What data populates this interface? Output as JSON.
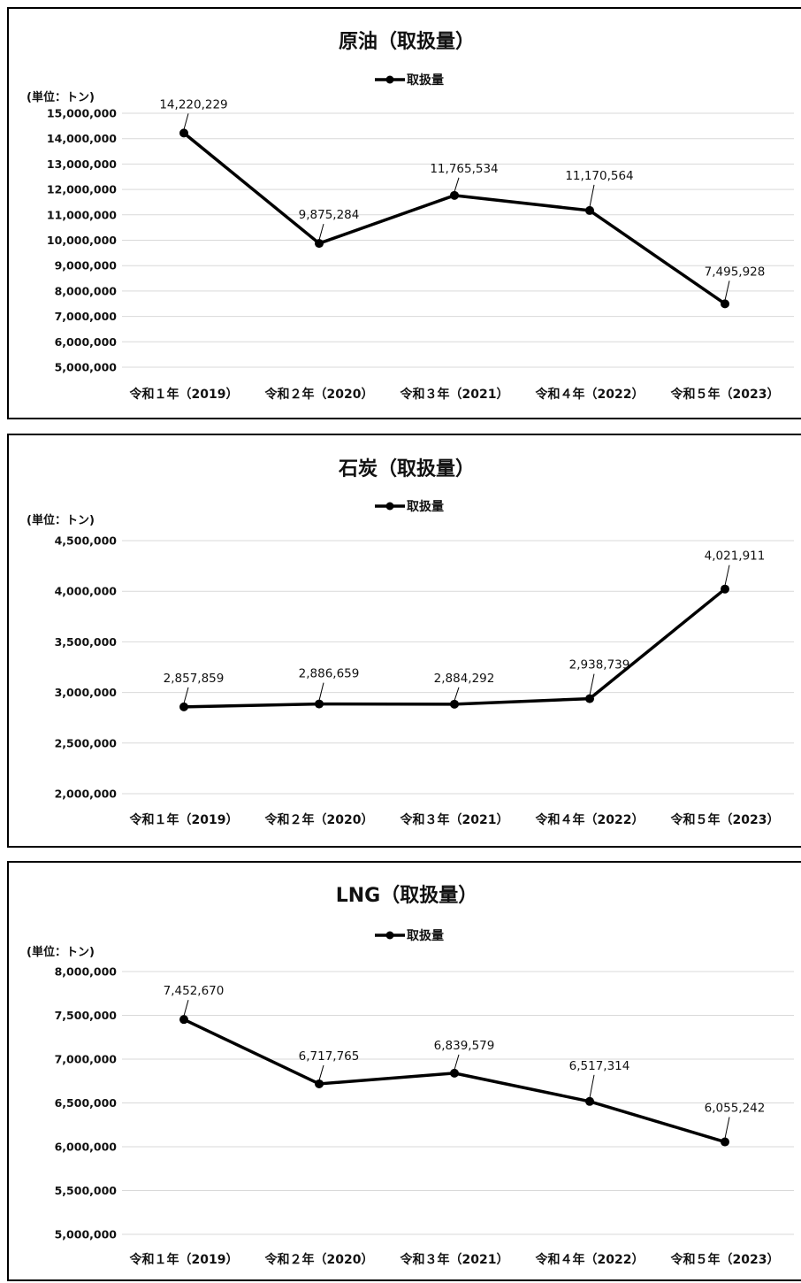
{
  "chart_data": [
    {
      "type": "line",
      "title": "原油（取扱量）",
      "unit_label": "(単位：トン)",
      "legend_label": "取扱量",
      "legend_position": "top-center",
      "grid": true,
      "categories": [
        "令和１年（2019）",
        "令和２年（2020）",
        "令和３年（2021）",
        "令和４年（2022）",
        "令和５年（2023）"
      ],
      "series": [
        {
          "name": "取扱量",
          "values": [
            14220229,
            9875284,
            11765534,
            11170564,
            7495928
          ]
        }
      ],
      "value_labels": [
        "14,220,229",
        "9,875,284",
        "11,765,534",
        "11,170,564",
        "7,495,928"
      ],
      "ylim": [
        5000000,
        15000000
      ],
      "yticks": [
        5000000,
        6000000,
        7000000,
        8000000,
        9000000,
        10000000,
        11000000,
        12000000,
        13000000,
        14000000,
        15000000
      ],
      "ytick_labels": [
        "5,000,000",
        "6,000,000",
        "7,000,000",
        "8,000,000",
        "9,000,000",
        "10,000,000",
        "11,000,000",
        "12,000,000",
        "13,000,000",
        "14,000,000",
        "15,000,000"
      ]
    },
    {
      "type": "line",
      "title": "石炭（取扱量）",
      "unit_label": "(単位：トン)",
      "legend_label": "取扱量",
      "legend_position": "top-center",
      "grid": true,
      "categories": [
        "令和１年（2019）",
        "令和２年（2020）",
        "令和３年（2021）",
        "令和４年（2022）",
        "令和５年（2023）"
      ],
      "series": [
        {
          "name": "取扱量",
          "values": [
            2857859,
            2886659,
            2884292,
            2938739,
            4021911
          ]
        }
      ],
      "value_labels": [
        "2,857,859",
        "2,886,659",
        "2,884,292",
        "2,938,739",
        "4,021,911"
      ],
      "ylim": [
        2000000,
        4500000
      ],
      "yticks": [
        2000000,
        2500000,
        3000000,
        3500000,
        4000000,
        4500000
      ],
      "ytick_labels": [
        "2,000,000",
        "2,500,000",
        "3,000,000",
        "3,500,000",
        "4,000,000",
        "4,500,000"
      ]
    },
    {
      "type": "line",
      "title": "LNG（取扱量）",
      "unit_label": "(単位：トン)",
      "legend_label": "取扱量",
      "legend_position": "top-center",
      "grid": true,
      "categories": [
        "令和１年（2019）",
        "令和２年（2020）",
        "令和３年（2021）",
        "令和４年（2022）",
        "令和５年（2023）"
      ],
      "series": [
        {
          "name": "取扱量",
          "values": [
            7452670,
            6717765,
            6839579,
            6517314,
            6055242
          ]
        }
      ],
      "value_labels": [
        "7,452,670",
        "6,717,765",
        "6,839,579",
        "6,517,314",
        "6,055,242"
      ],
      "ylim": [
        5000000,
        8000000
      ],
      "yticks": [
        5000000,
        5500000,
        6000000,
        6500000,
        7000000,
        7500000,
        8000000
      ],
      "ytick_labels": [
        "5,000,000",
        "5,500,000",
        "6,000,000",
        "6,500,000",
        "7,000,000",
        "7,500,000",
        "8,000,000"
      ]
    }
  ]
}
